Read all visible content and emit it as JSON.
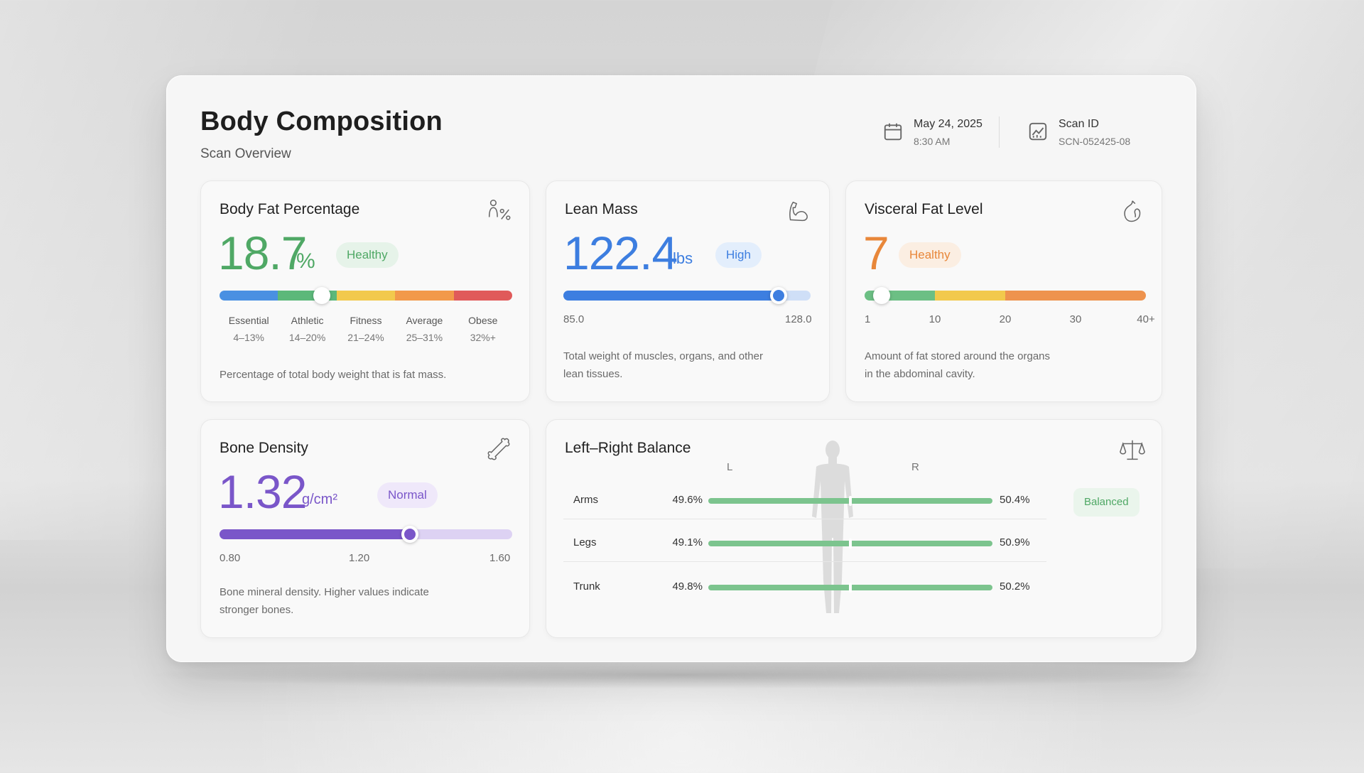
{
  "header": {
    "title": "Body Composition",
    "subtitle": "Scan Overview",
    "date": "May 24, 2025",
    "time": "8:30 AM",
    "scan_label": "Scan ID",
    "scan_id": "SCN-052425-08",
    "date_icon": "calendar-icon",
    "scan_icon": "chart-icon"
  },
  "body_fat": {
    "title": "Body Fat Percentage",
    "value": "18.7",
    "unit": "%",
    "badge": "Healthy",
    "position_pct": 18.7,
    "icon": "body-fat-icon",
    "zones": [
      {
        "label": "Essential",
        "range": "4–13%",
        "color": "#4a90e2"
      },
      {
        "label": "Athletic",
        "range": "14–20%",
        "color": "#5cb87a"
      },
      {
        "label": "Fitness",
        "range": "21–24%",
        "color": "#f2c94c"
      },
      {
        "label": "Average",
        "range": "25–31%",
        "color": "#f2994a"
      },
      {
        "label": "Obese",
        "range": "32%+",
        "color": "#e05a5a"
      }
    ],
    "description": "Percentage of total body weight that is fat mass."
  },
  "lean_mass": {
    "title": "Lean Mass",
    "value": "122.4",
    "unit": "lbs",
    "badge": "High",
    "min": "85.0",
    "max": "128.0",
    "current": 122.4,
    "icon": "muscle-icon",
    "description_1": "Total weight of muscles, organs, and other",
    "description_2": "lean tissues."
  },
  "visceral_fat": {
    "title": "Visceral Fat Level",
    "value": "7",
    "badge": "Healthy",
    "current": 7,
    "ticks": [
      "1",
      "10",
      "20",
      "30",
      "40+"
    ],
    "icon": "organ-icon",
    "description_1": "Amount of fat stored around the organs",
    "description_2": "in the abdominal cavity."
  },
  "bone_density": {
    "title": "Bone Density",
    "value": "1.32",
    "unit": "g/cm²",
    "badge": "Normal",
    "min": "0.80",
    "mid": "1.20",
    "max": "1.60",
    "current": 1.32,
    "icon": "bone-icon",
    "description_1": "Bone mineral density. Higher values indicate",
    "description_2": "stronger bones."
  },
  "balance": {
    "title": "Left–Right Balance",
    "left_label": "L",
    "right_label": "R",
    "badge": "Balanced",
    "icon": "scale-icon",
    "rows": [
      {
        "name": "Arms",
        "left": "49.6%",
        "right": "50.4%"
      },
      {
        "name": "Legs",
        "left": "49.1%",
        "right": "50.9%"
      },
      {
        "name": "Trunk",
        "left": "49.8%",
        "right": "50.2%"
      }
    ]
  },
  "colors": {
    "green": "#4fa865",
    "blue": "#3d7ee0",
    "orange": "#e8873a",
    "purple": "#7a56c9"
  }
}
